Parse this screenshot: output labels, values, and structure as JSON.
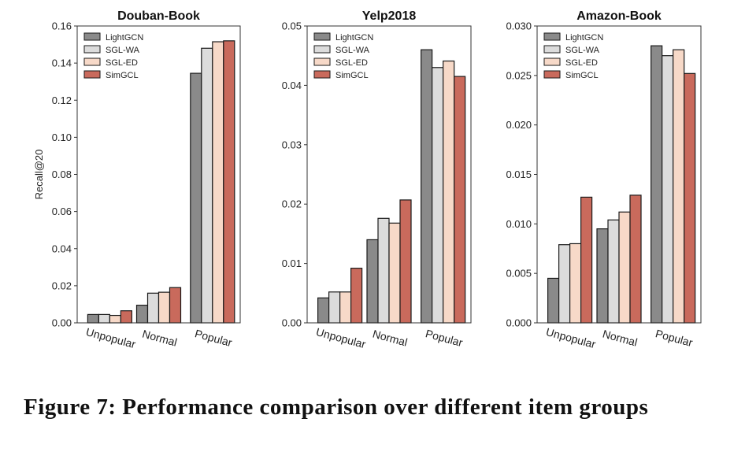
{
  "series_names": [
    "LightGCN",
    "SGL-WA",
    "SGL-ED",
    "SimGCL"
  ],
  "series_colors": [
    "#8a8a8a",
    "#dcdcdc",
    "#f7d9c8",
    "#c96a5c"
  ],
  "categories": [
    "Unpopular",
    "Normal",
    "Popular"
  ],
  "caption": "Figure 7: Performance comparison over different item groups",
  "chart_data": [
    {
      "type": "bar",
      "title": "Douban-Book",
      "ylabel": "Recall@20",
      "ylim": [
        0,
        0.16
      ],
      "yticks": [
        "0.00",
        "0.02",
        "0.04",
        "0.06",
        "0.08",
        "0.10",
        "0.12",
        "0.14",
        "0.16"
      ],
      "legend": "top-left",
      "grid": false,
      "categories": [
        "Unpopular",
        "Normal",
        "Popular"
      ],
      "series": [
        {
          "name": "LightGCN",
          "values": [
            0.0045,
            0.0095,
            0.1345
          ]
        },
        {
          "name": "SGL-WA",
          "values": [
            0.0045,
            0.016,
            0.148
          ]
        },
        {
          "name": "SGL-ED",
          "values": [
            0.004,
            0.0165,
            0.1515
          ]
        },
        {
          "name": "SimGCL",
          "values": [
            0.0065,
            0.019,
            0.152
          ]
        }
      ]
    },
    {
      "type": "bar",
      "title": "Yelp2018",
      "ylabel": "",
      "ylim": [
        0,
        0.05
      ],
      "yticks": [
        "0.00",
        "0.01",
        "0.02",
        "0.03",
        "0.04",
        "0.05"
      ],
      "legend": "top-left",
      "grid": false,
      "categories": [
        "Unpopular",
        "Normal",
        "Popular"
      ],
      "series": [
        {
          "name": "LightGCN",
          "values": [
            0.0042,
            0.014,
            0.046
          ]
        },
        {
          "name": "SGL-WA",
          "values": [
            0.0052,
            0.0176,
            0.043
          ]
        },
        {
          "name": "SGL-ED",
          "values": [
            0.0052,
            0.0168,
            0.0441
          ]
        },
        {
          "name": "SimGCL",
          "values": [
            0.0092,
            0.0207,
            0.0415
          ]
        }
      ]
    },
    {
      "type": "bar",
      "title": "Amazon-Book",
      "ylabel": "",
      "ylim": [
        0,
        0.03
      ],
      "yticks": [
        "0.000",
        "0.005",
        "0.010",
        "0.015",
        "0.020",
        "0.025",
        "0.030"
      ],
      "legend": "top-left",
      "grid": false,
      "categories": [
        "Unpopular",
        "Normal",
        "Popular"
      ],
      "series": [
        {
          "name": "LightGCN",
          "values": [
            0.0045,
            0.0095,
            0.028
          ]
        },
        {
          "name": "SGL-WA",
          "values": [
            0.0079,
            0.0104,
            0.027
          ]
        },
        {
          "name": "SGL-ED",
          "values": [
            0.008,
            0.0112,
            0.0276
          ]
        },
        {
          "name": "SimGCL",
          "values": [
            0.0127,
            0.0129,
            0.0252
          ]
        }
      ]
    }
  ]
}
